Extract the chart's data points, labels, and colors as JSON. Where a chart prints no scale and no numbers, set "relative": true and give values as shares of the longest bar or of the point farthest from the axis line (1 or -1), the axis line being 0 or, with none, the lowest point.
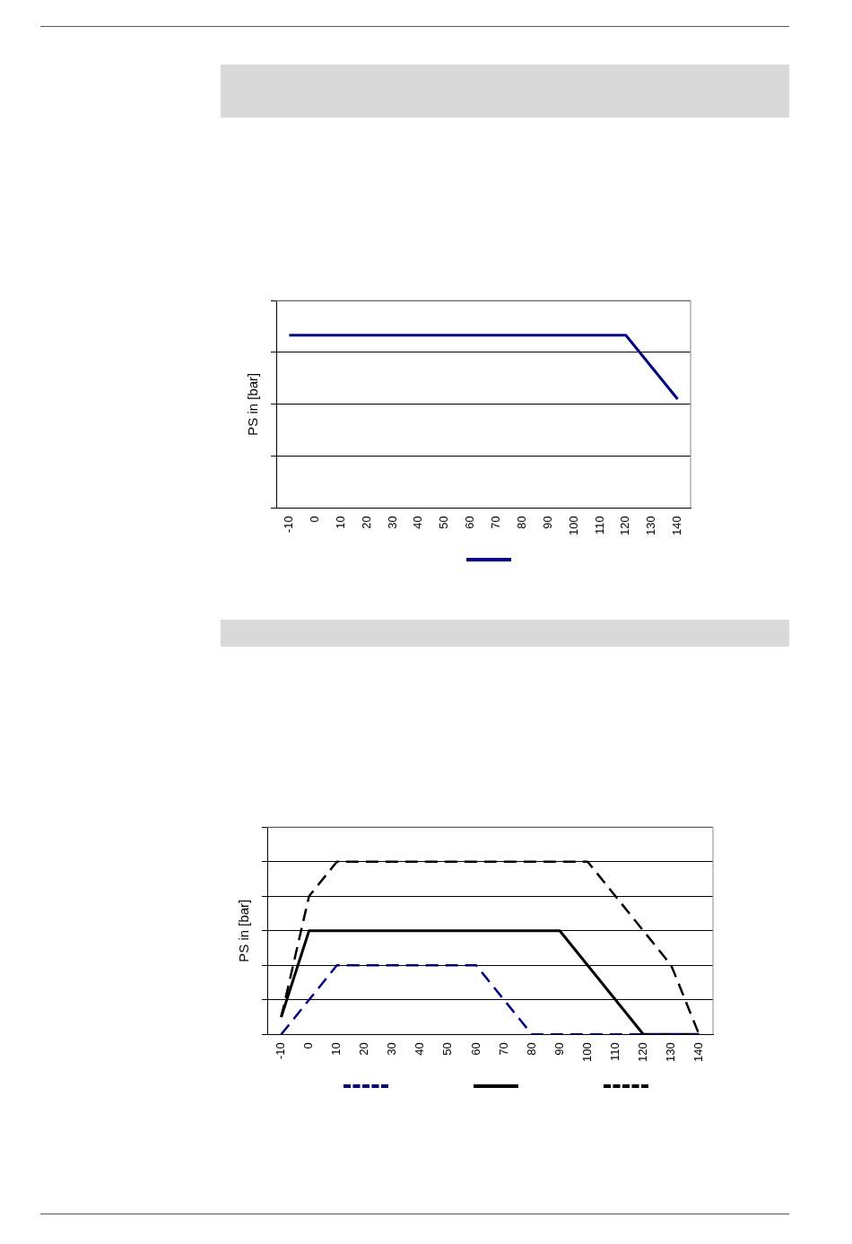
{
  "chart_data": [
    {
      "type": "line",
      "ylabel": "PS in [bar]",
      "relative": true,
      "marker": "none",
      "categories": [
        "-10",
        "0",
        "10",
        "20",
        "30",
        "40",
        "50",
        "60",
        "70",
        "80",
        "90",
        "100",
        "110",
        "120",
        "130",
        "140"
      ],
      "series": [
        {
          "color": "#000080",
          "line_style": "solid",
          "values": [
            1,
            1,
            1,
            1,
            1,
            1,
            1,
            1,
            1,
            1,
            1,
            1,
            1,
            1,
            null,
            0.63
          ]
        }
      ]
    },
    {
      "type": "line",
      "ylabel": "PS in [bar]",
      "relative": true,
      "marker": "none",
      "categories": [
        "-10",
        "0",
        "10",
        "20",
        "30",
        "40",
        "50",
        "60",
        "70",
        "80",
        "90",
        "100",
        "110",
        "120",
        "130",
        "140"
      ],
      "series": [
        {
          "color": "#000080",
          "line_style": "dashed",
          "values": [
            0,
            0.2,
            0.4,
            0.4,
            0.4,
            0.4,
            0.4,
            0.4,
            0.2,
            0,
            0,
            0,
            0,
            0,
            0,
            0
          ]
        },
        {
          "color": "#000000",
          "line_style": "solid",
          "values": [
            0.1,
            0.6,
            0.6,
            0.6,
            0.6,
            0.6,
            0.6,
            0.6,
            0.6,
            0.6,
            0.6,
            0.4,
            0.2,
            0,
            0,
            0
          ]
        },
        {
          "color": "#000000",
          "line_style": "dashed",
          "values": [
            0.1,
            0.8,
            1,
            1,
            1,
            1,
            1,
            1,
            1,
            1,
            1,
            1,
            0.8,
            0.6,
            0.4,
            0
          ]
        }
      ]
    }
  ]
}
